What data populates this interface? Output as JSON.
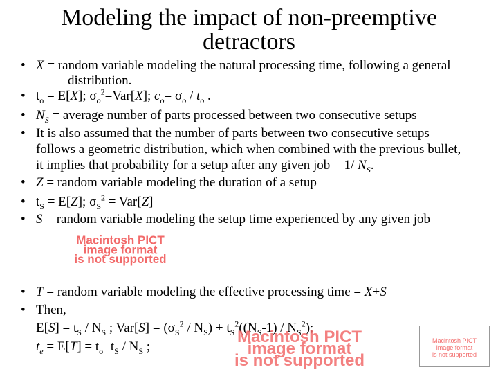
{
  "title_line1": "Modeling the impact of non-preemptive",
  "title_line2": "detractors",
  "bullet_glyph": "•",
  "b1": {
    "v": "X",
    "t1": " = random variable modeling the natural processing time, following a general",
    "t2": "distribution."
  },
  "b2": {
    "t": "t",
    "o": "o",
    "eq": " = E[",
    "x": "X",
    "close": "];  ",
    "sigma": "σ",
    "o2": "o",
    "two": "2",
    "var": "=Var[",
    "x2": "X",
    "close2": "];  ",
    "c": "c",
    "o3": "o",
    "eq2": "= ",
    "sigma2": "σ",
    "o4": "o",
    "div": " / ",
    "t2": "t",
    "o5": "o",
    "end": " ."
  },
  "b3": {
    "n": "N",
    "s": "S",
    "t": " = average number of parts processed between two consecutive setups"
  },
  "b4": {
    "l1": "It is also assumed that the number of parts between two consecutive setups",
    "l2": "follows a geometric distribution, which when combined with the previous bullet,",
    "l3a": "it implies that probability for a setup after any given job = 1/ ",
    "l3n": "N",
    "l3s": "S",
    "l3e": "."
  },
  "b5": {
    "v": "Z",
    "t": " = random variable modeling the duration of a setup"
  },
  "b6": {
    "t": "t",
    "s": "S",
    "eq": " = E[",
    "z": "Z",
    "close": "];  ",
    "sigma": "σ",
    "s2": "S",
    "two": "2",
    "var": " = Var[",
    "z2": "Z",
    "close2": "]"
  },
  "b7": {
    "v": "S",
    "t": " = random variable modeling the setup time experienced by any given job ="
  },
  "b8": {
    "v": "T",
    "t": " = random variable modeling the effective processing time = ",
    "x": "X",
    "plus": "+",
    "s": "S"
  },
  "b9": {
    "t": "Then,"
  },
  "eq1": {
    "a": "E[",
    "s": "S",
    "b": "] = t",
    "ss": "S",
    "c": " / N",
    "ss2": "S",
    "d": " ;   Var[",
    "s2": "S",
    "e": "] = (σ",
    "ss3": "S",
    "two": "2",
    "f": " / N",
    "ss4": "S",
    "g": ") + t",
    "ss5": "S",
    "two2": "2",
    "h": "((N",
    "ss6": "S",
    "i": "-1) / N",
    "ss7": "S",
    "two3": "2",
    "j": ");"
  },
  "eq2": {
    "t": "t",
    "e": "e",
    "a": " = E[",
    "T": "T",
    "b": "] = t",
    "o": "o",
    "c": "+t",
    "s": "S",
    "d": " / N",
    "s2": "S",
    "end": " ;"
  },
  "pict": {
    "line1": "Macintosh PICT",
    "line2": "image format",
    "line3": "is not supported"
  },
  "colors": {
    "placeholder": "#f26a6a"
  }
}
